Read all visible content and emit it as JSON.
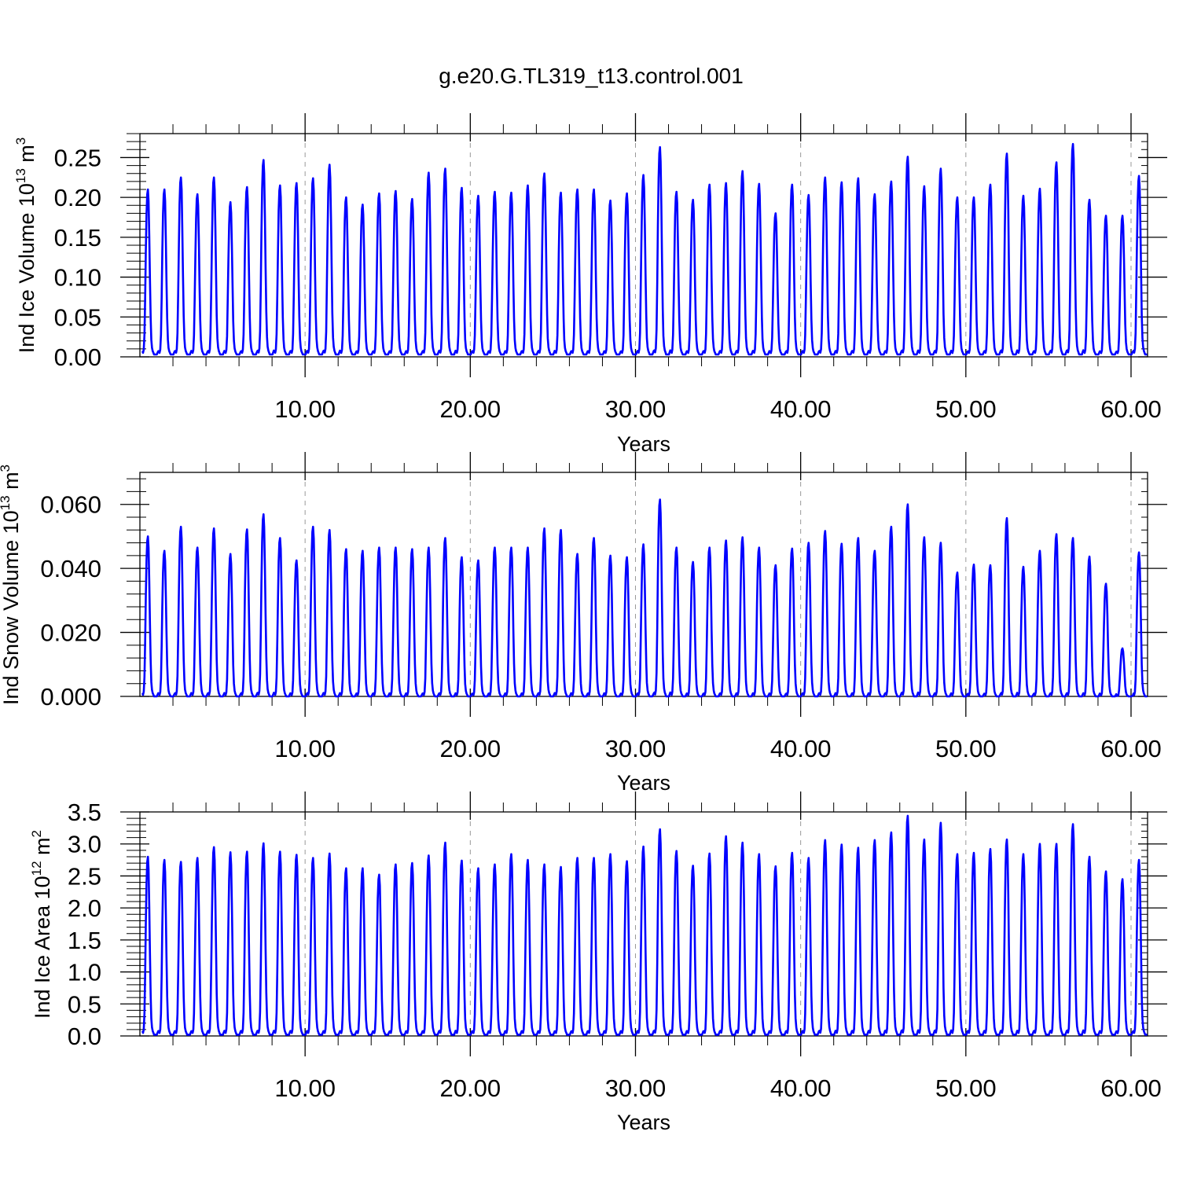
{
  "title": "g.e20.G.TL319_t13.control.001",
  "colors": {
    "series": "#0000ff",
    "axes": "#000000",
    "gridline": "#999999"
  },
  "chart_data": [
    {
      "type": "line",
      "ylabel": {
        "main": "Ind Ice Volume 10",
        "sup": "13",
        "unit": " m",
        "unit_sup": "3"
      },
      "xlabel": "Years",
      "xlim": [
        0,
        61
      ],
      "ylim": [
        0,
        0.28
      ],
      "xticks": [
        10,
        20,
        30,
        40,
        50,
        60
      ],
      "xtick_labels": [
        "10.00",
        "20.00",
        "30.00",
        "40.00",
        "50.00",
        "60.00"
      ],
      "yticks": [
        0,
        0.05,
        0.1,
        0.15,
        0.2,
        0.25
      ],
      "ytick_labels": [
        "0.00",
        "0.05",
        "0.10",
        "0.15",
        "0.20",
        "0.25"
      ],
      "vertical_gridlines": "dashed at 10-year ticks",
      "minimum": 0.003,
      "annual_maxima": [
        0.21,
        0.21,
        0.225,
        0.204,
        0.225,
        0.194,
        0.213,
        0.247,
        0.215,
        0.218,
        0.224,
        0.241,
        0.2,
        0.191,
        0.205,
        0.208,
        0.198,
        0.231,
        0.236,
        0.212,
        0.202,
        0.207,
        0.206,
        0.215,
        0.23,
        0.206,
        0.21,
        0.21,
        0.196,
        0.205,
        0.228,
        0.263,
        0.207,
        0.197,
        0.216,
        0.218,
        0.233,
        0.217,
        0.18,
        0.216,
        0.203,
        0.225,
        0.219,
        0.224,
        0.204,
        0.22,
        0.251,
        0.214,
        0.236,
        0.2,
        0.2,
        0.216,
        0.255,
        0.202,
        0.211,
        0.244,
        0.267,
        0.197,
        0.177,
        0.177,
        0.227
      ]
    },
    {
      "type": "line",
      "ylabel": {
        "main": "Ind Snow Volume 10",
        "sup": "13",
        "unit": " m",
        "unit_sup": "3"
      },
      "xlabel": "Years",
      "xlim": [
        0,
        61
      ],
      "ylim": [
        0,
        0.07
      ],
      "xticks": [
        10,
        20,
        30,
        40,
        50,
        60
      ],
      "xtick_labels": [
        "10.00",
        "20.00",
        "30.00",
        "40.00",
        "50.00",
        "60.00"
      ],
      "yticks": [
        0,
        0.02,
        0.04,
        0.06
      ],
      "ytick_labels": [
        "0.000",
        "0.020",
        "0.040",
        "0.060"
      ],
      "vertical_gridlines": "dashed at 10-year ticks",
      "minimum": 0.0,
      "annual_maxima": [
        0.05,
        0.0455,
        0.053,
        0.0465,
        0.0525,
        0.0445,
        0.0522,
        0.0569,
        0.0495,
        0.0425,
        0.053,
        0.052,
        0.046,
        0.0455,
        0.0465,
        0.0465,
        0.046,
        0.0465,
        0.0495,
        0.0435,
        0.0425,
        0.0465,
        0.0465,
        0.0465,
        0.0525,
        0.052,
        0.0445,
        0.0495,
        0.044,
        0.0435,
        0.0475,
        0.0615,
        0.0465,
        0.042,
        0.0465,
        0.0487,
        0.0497,
        0.0465,
        0.041,
        0.0462,
        0.048,
        0.0517,
        0.0477,
        0.0495,
        0.0455,
        0.053,
        0.06,
        0.0497,
        0.048,
        0.0387,
        0.0412,
        0.041,
        0.0557,
        0.0405,
        0.0455,
        0.0507,
        0.0495,
        0.0437,
        0.0352,
        0.015,
        0.045
      ]
    },
    {
      "type": "line",
      "ylabel": {
        "main": "Ind Ice Area 10",
        "sup": "12",
        "unit": " m",
        "unit_sup": "2"
      },
      "xlabel": "Years",
      "xlim": [
        0,
        61
      ],
      "ylim": [
        0,
        3.5
      ],
      "xticks": [
        10,
        20,
        30,
        40,
        50,
        60
      ],
      "xtick_labels": [
        "10.00",
        "20.00",
        "30.00",
        "40.00",
        "50.00",
        "60.00"
      ],
      "yticks": [
        0,
        0.5,
        1,
        1.5,
        2,
        2.5,
        3,
        3.5
      ],
      "ytick_labels": [
        "0.0",
        "0.5",
        "1.0",
        "1.5",
        "2.0",
        "2.5",
        "3.0",
        "3.5"
      ],
      "vertical_gridlines": "dashed at 10-year ticks",
      "minimum": 0.02,
      "annual_maxima": [
        2.8,
        2.75,
        2.72,
        2.78,
        2.95,
        2.87,
        2.88,
        3.01,
        2.88,
        2.83,
        2.78,
        2.85,
        2.62,
        2.62,
        2.52,
        2.68,
        2.7,
        2.82,
        3.02,
        2.74,
        2.62,
        2.68,
        2.84,
        2.75,
        2.68,
        2.64,
        2.78,
        2.78,
        2.84,
        2.73,
        2.96,
        3.23,
        2.89,
        2.66,
        2.85,
        3.12,
        3.02,
        2.84,
        2.65,
        2.86,
        2.78,
        3.06,
        2.99,
        2.94,
        3.06,
        3.18,
        3.44,
        3.07,
        3.33,
        2.84,
        2.86,
        2.92,
        3.07,
        2.84,
        3.0,
        3.0,
        3.31,
        2.8,
        2.57,
        2.45,
        2.75
      ]
    }
  ]
}
